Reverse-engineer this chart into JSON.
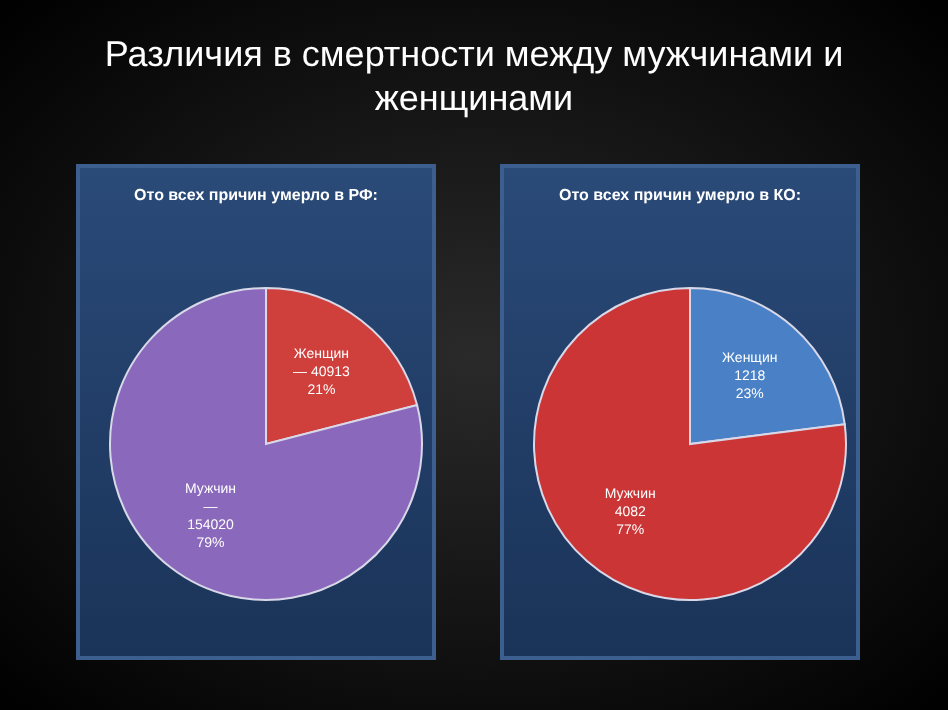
{
  "chart_data": [
    {
      "type": "pie",
      "title": "Различия в смертности между мужчинами и женщинами",
      "subtitle": "Ото всех причин умерло в РФ:",
      "categories": [
        "Женщин",
        "Мужчин"
      ],
      "values": [
        40913,
        154020
      ],
      "colors": [
        "#cf3f3c",
        "#8a68bb"
      ],
      "value_labels": [
        "— 40913\n21%",
        "—\n154020\n79%"
      ],
      "legend": false
    },
    {
      "type": "pie",
      "title": "Ото всех причин умерло в КО:",
      "categories": [
        "Женщин",
        "Мужчин"
      ],
      "values": [
        1218,
        4082
      ],
      "colors": [
        "#4a80c6",
        "#cc3535"
      ],
      "value_labels": [
        "1218\n23%",
        "4082\n77%"
      ],
      "legend": false
    }
  ]
}
